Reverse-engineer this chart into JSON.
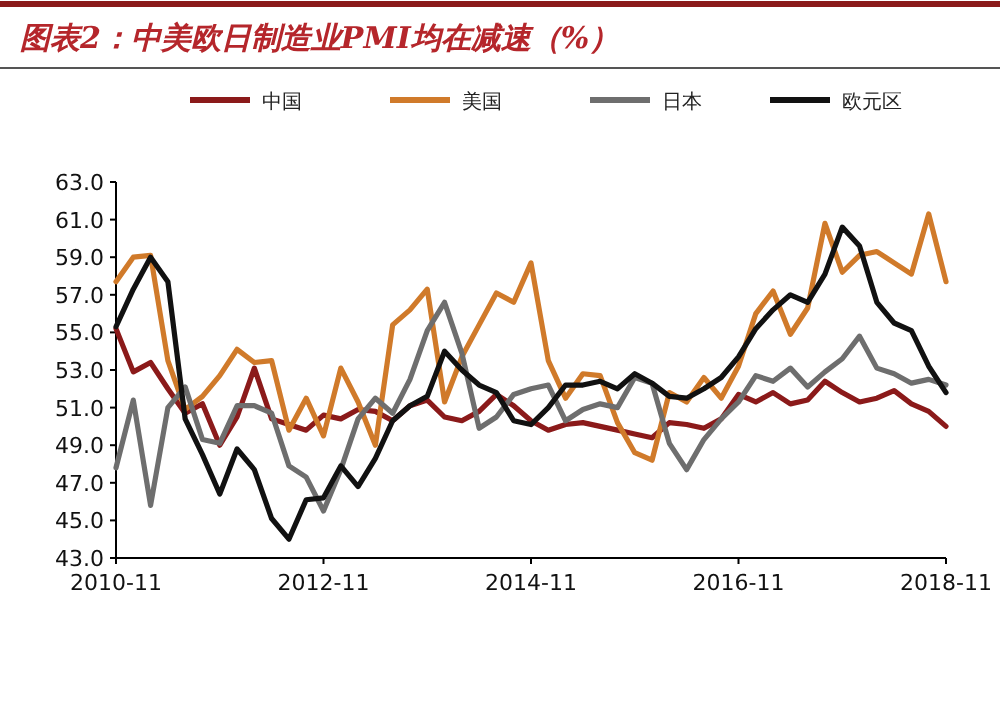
{
  "chart_data": {
    "type": "line",
    "title": "图表2：中美欧日制造业PMI均在减速（%）",
    "x": [
      "2010-11",
      "2011-01",
      "2011-03",
      "2011-05",
      "2011-07",
      "2011-09",
      "2011-11",
      "2012-01",
      "2012-03",
      "2012-05",
      "2012-07",
      "2012-09",
      "2012-11",
      "2013-01",
      "2013-03",
      "2013-05",
      "2013-07",
      "2013-09",
      "2013-11",
      "2014-01",
      "2014-03",
      "2014-05",
      "2014-07",
      "2014-09",
      "2014-11",
      "2015-01",
      "2015-03",
      "2015-05",
      "2015-07",
      "2015-09",
      "2015-11",
      "2016-01",
      "2016-03",
      "2016-05",
      "2016-07",
      "2016-09",
      "2016-11",
      "2017-01",
      "2017-03",
      "2017-05",
      "2017-07",
      "2017-09",
      "2017-11",
      "2018-01",
      "2018-03",
      "2018-05",
      "2018-07",
      "2018-09",
      "2018-11"
    ],
    "series": [
      {
        "name": "中国",
        "color": "#8b1a1a",
        "values": [
          55.2,
          52.9,
          53.4,
          52.0,
          50.7,
          51.2,
          49.0,
          50.5,
          53.1,
          50.4,
          50.1,
          49.8,
          50.6,
          50.4,
          50.9,
          50.8,
          50.3,
          51.1,
          51.4,
          50.5,
          50.3,
          50.8,
          51.7,
          51.1,
          50.3,
          49.8,
          50.1,
          50.2,
          50.0,
          49.8,
          49.6,
          49.4,
          50.2,
          50.1,
          49.9,
          50.4,
          51.7,
          51.3,
          51.8,
          51.2,
          51.4,
          52.4,
          51.8,
          51.3,
          51.5,
          51.9,
          51.2,
          50.8,
          50.0
        ]
      },
      {
        "name": "美国",
        "color": "#d07a2a",
        "values": [
          57.7,
          59.0,
          59.1,
          53.5,
          50.9,
          51.6,
          52.7,
          54.1,
          53.4,
          53.5,
          49.8,
          51.5,
          49.5,
          53.1,
          51.3,
          49.0,
          55.4,
          56.2,
          57.3,
          51.3,
          53.7,
          55.4,
          57.1,
          56.6,
          58.7,
          53.5,
          51.5,
          52.8,
          52.7,
          50.2,
          48.6,
          48.2,
          51.8,
          51.3,
          52.6,
          51.5,
          53.2,
          56.0,
          57.2,
          54.9,
          56.3,
          60.8,
          58.2,
          59.1,
          59.3,
          58.7,
          58.1,
          61.3,
          57.7
        ]
      },
      {
        "name": "日本",
        "color": "#6e6e6e",
        "values": [
          47.8,
          51.4,
          45.8,
          51.0,
          52.1,
          49.3,
          49.1,
          51.1,
          51.1,
          50.7,
          47.9,
          47.3,
          45.5,
          47.7,
          50.4,
          51.5,
          50.7,
          52.5,
          55.1,
          56.6,
          53.9,
          49.9,
          50.5,
          51.7,
          52.0,
          52.2,
          50.3,
          50.9,
          51.2,
          51.0,
          52.6,
          52.3,
          49.1,
          47.7,
          49.3,
          50.4,
          51.3,
          52.7,
          52.4,
          53.1,
          52.1,
          52.9,
          53.6,
          54.8,
          53.1,
          52.8,
          52.3,
          52.5,
          52.2
        ]
      },
      {
        "name": "欧元区",
        "color": "#111111",
        "values": [
          55.3,
          57.3,
          59.0,
          57.7,
          50.4,
          48.5,
          46.4,
          48.8,
          47.7,
          45.1,
          44.0,
          46.1,
          46.2,
          47.9,
          46.8,
          48.3,
          50.3,
          51.1,
          51.6,
          54.0,
          53.0,
          52.2,
          51.8,
          50.3,
          50.1,
          51.0,
          52.2,
          52.2,
          52.4,
          52.0,
          52.8,
          52.3,
          51.6,
          51.5,
          52.0,
          52.6,
          53.7,
          55.2,
          56.2,
          57.0,
          56.6,
          58.1,
          60.6,
          59.6,
          56.6,
          55.5,
          55.1,
          53.2,
          51.8
        ]
      }
    ],
    "xlim": [
      "2010-11",
      "2018-11"
    ],
    "xticks": [
      "2010-11",
      "2012-11",
      "2014-11",
      "2016-11",
      "2018-11"
    ],
    "ylim": [
      43,
      63
    ],
    "yticks": [
      {
        "value": 43,
        "label": "43.0"
      },
      {
        "value": 45,
        "label": "45.0"
      },
      {
        "value": 47,
        "label": "47.0"
      },
      {
        "value": 49,
        "label": "49.0"
      },
      {
        "value": 51,
        "label": "51.0"
      },
      {
        "value": 53,
        "label": "53.0"
      },
      {
        "value": 55,
        "label": "55.0"
      },
      {
        "value": 57,
        "label": "57.0"
      },
      {
        "value": 59,
        "label": "59.0"
      },
      {
        "value": 61,
        "label": "61.0"
      },
      {
        "value": 63,
        "label": "63.0"
      }
    ],
    "legend": "top",
    "grid": false,
    "marker": "none",
    "line_style": "solid"
  }
}
